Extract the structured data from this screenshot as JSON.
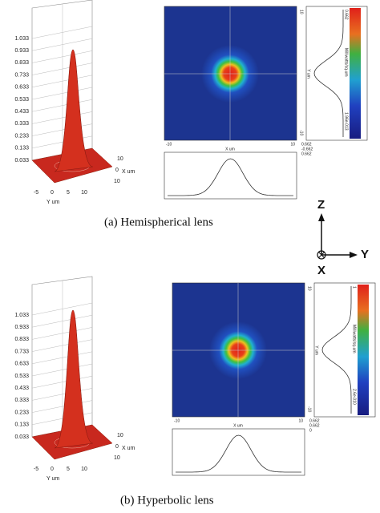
{
  "panels": [
    {
      "caption": "(a)  Hemispherical lens",
      "surface": {
        "z_ticks": [
          "1.033",
          "0.933",
          "0.833",
          "0.733",
          "0.633",
          "0.533",
          "0.433",
          "0.333",
          "0.233",
          "0.133",
          "0.033"
        ],
        "y_ticks": [
          "-5",
          "0",
          "5",
          "10"
        ],
        "y_label": "Y um",
        "x_ticks": [
          "10",
          "0",
          "10"
        ],
        "x_label": "X um"
      },
      "map": {
        "x_ticks": [
          "-10",
          "10"
        ],
        "x_label": "X um",
        "y_ticks": [
          "10",
          "-10"
        ],
        "y_label": "Y um",
        "colorbar_max": "0.662",
        "colorbar_min": "1.96e-013",
        "colorbar_label": "Milliwatts/sq-um",
        "profile_legend": [
          "0.662",
          "-0.662",
          "0.662"
        ]
      }
    },
    {
      "caption": "(b) Hyperbolic lens",
      "surface": {
        "z_ticks": [
          "1.033",
          "0.933",
          "0.833",
          "0.733",
          "0.633",
          "0.533",
          "0.433",
          "0.333",
          "0.233",
          "0.133",
          "0.033"
        ],
        "y_ticks": [
          "-5",
          "0",
          "5",
          "10"
        ],
        "y_label": "Y um",
        "x_ticks": [
          "10",
          "0",
          "10"
        ],
        "x_label": "X um"
      },
      "map": {
        "x_ticks": [
          "-10",
          "10"
        ],
        "x_label": "X um",
        "y_ticks": [
          "10",
          "-10"
        ],
        "y_label": "Y um",
        "colorbar_max": "1",
        "colorbar_min": "2.6e-010",
        "colorbar_label": "Milliwatts/sq-um",
        "profile_legend": [
          "0.662",
          "0.662",
          "0"
        ]
      }
    }
  ],
  "axes": {
    "z": "Z",
    "y": "Y",
    "x": "X"
  }
}
